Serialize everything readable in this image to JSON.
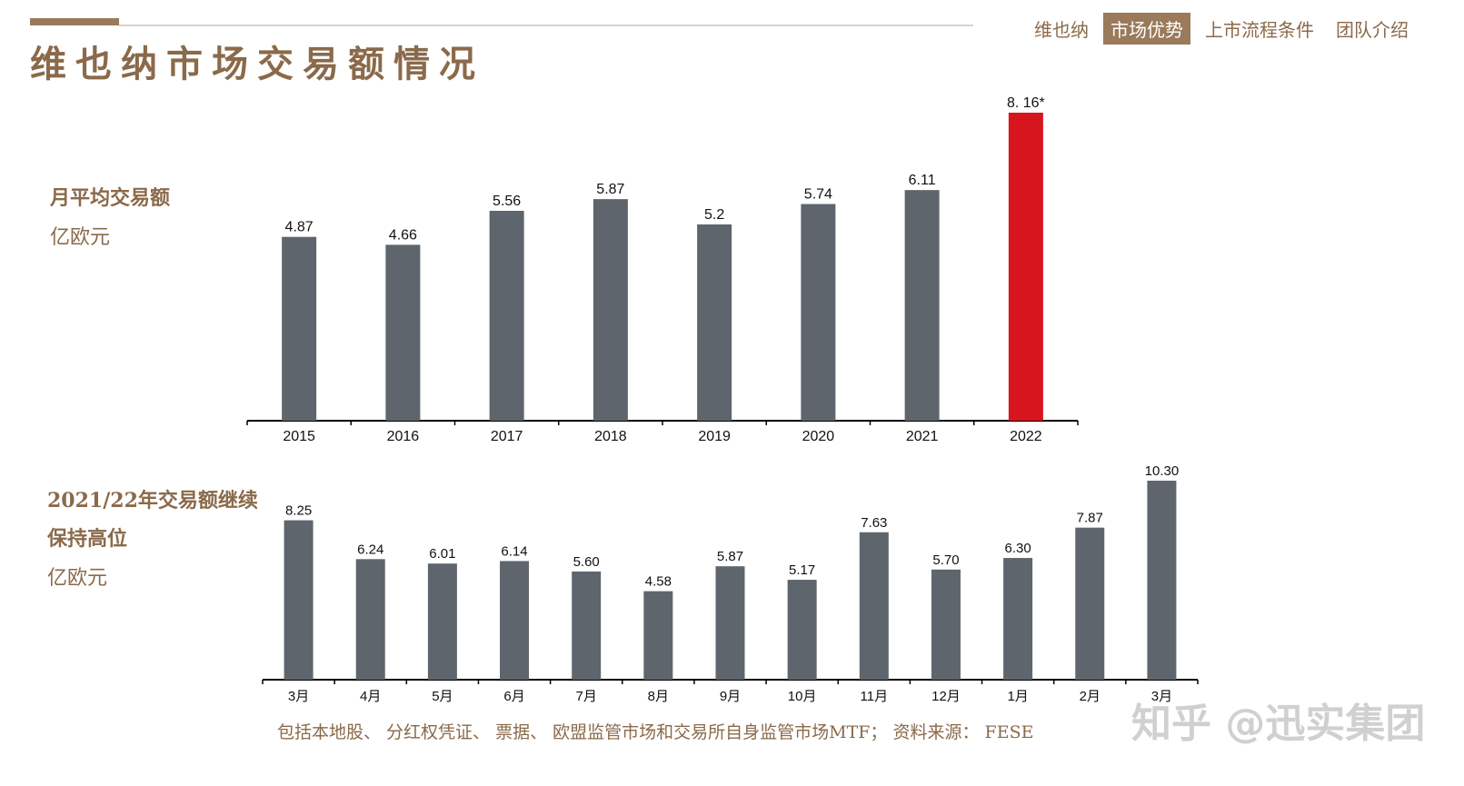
{
  "header": {
    "title": "维也纳市场交易额情况",
    "nav": [
      {
        "label": "维也纳",
        "active": false
      },
      {
        "label": "市场优势",
        "active": true
      },
      {
        "label": "上市流程条件",
        "active": false
      },
      {
        "label": "团队介绍",
        "active": false
      }
    ]
  },
  "labels": {
    "top_title": "月平均交易额",
    "top_unit": "亿欧元",
    "bottom_title_line1": "2021/22年交易额继续",
    "bottom_title_line2": "保持高位",
    "bottom_unit": "亿欧元"
  },
  "footnote": "包括本地股、 分红权凭证、 票据、 欧盟监管市场和交易所自身监管市场MTF； 资料来源： FESE",
  "watermark": "知乎 @迅实集团",
  "colors": {
    "bar": "#5e656c",
    "highlight": "#d7151f",
    "text": "#8a6a4a"
  },
  "chart_data": [
    {
      "type": "bar",
      "categories": [
        "2015",
        "2016",
        "2017",
        "2018",
        "2019",
        "2020",
        "2021",
        "2022"
      ],
      "values": [
        4.87,
        4.66,
        5.56,
        5.87,
        5.2,
        5.74,
        6.11,
        8.16
      ],
      "data_labels": [
        "4.87",
        "4.66",
        "5.56",
        "5.87",
        "5.2",
        "5.74",
        "6.11",
        "8. 16*"
      ],
      "highlight_index": 7,
      "ylim": [
        0,
        8.16
      ]
    },
    {
      "type": "bar",
      "categories": [
        "3月",
        "4月",
        "5月",
        "6月",
        "7月",
        "8月",
        "9月",
        "10月",
        "11月",
        "12月",
        "1月",
        "2月",
        "3月"
      ],
      "values": [
        8.25,
        6.24,
        6.01,
        6.14,
        5.6,
        4.58,
        5.87,
        5.17,
        7.63,
        5.7,
        6.3,
        7.87,
        10.3
      ],
      "data_labels": [
        "8.25",
        "6.24",
        "6.01",
        "6.14",
        "5.60",
        "4.58",
        "5.87",
        "5.17",
        "7.63",
        "5.70",
        "6.30",
        "7.87",
        "10.30"
      ],
      "ylim": [
        0,
        10.3
      ]
    }
  ]
}
